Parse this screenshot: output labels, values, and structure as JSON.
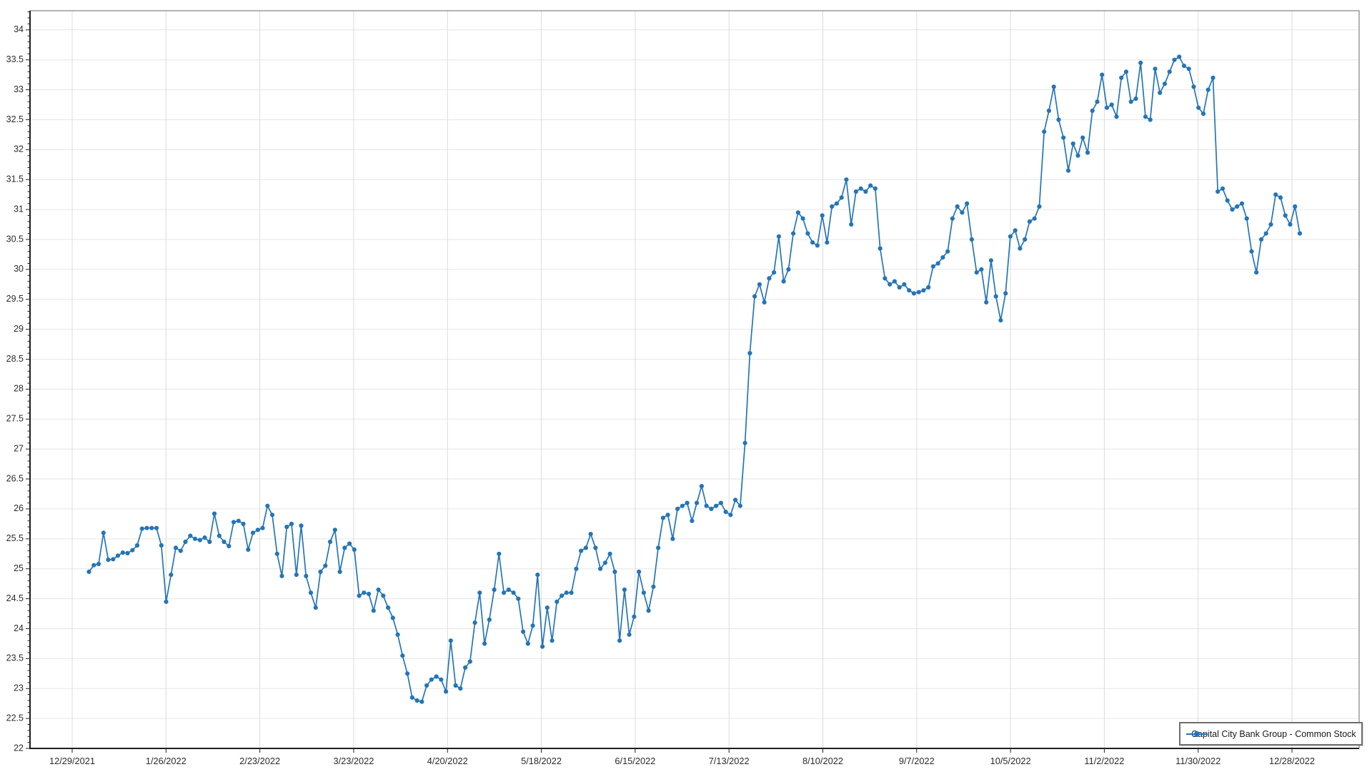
{
  "chart_data": {
    "type": "line",
    "title": "",
    "xlabel": "",
    "ylabel": "",
    "grid": true,
    "legend_position": "bottom-right",
    "x_tick_labels": [
      "12/29/2021",
      "1/26/2022",
      "2/23/2022",
      "3/23/2022",
      "4/20/2022",
      "5/18/2022",
      "6/15/2022",
      "7/13/2022",
      "8/10/2022",
      "9/7/2022",
      "10/5/2022",
      "11/2/2022",
      "11/30/2022",
      "12/28/2022"
    ],
    "y_axis": {
      "min": 22,
      "max": 34.32,
      "major_step": 0.5,
      "minor_step": 0.1,
      "top_label": 34,
      "bottom_label": 22
    },
    "series": [
      {
        "name": "Capital City Bank Group - Common Stock",
        "marker": "circle",
        "values": [
          24.95,
          25.06,
          25.08,
          25.6,
          25.15,
          25.16,
          25.22,
          25.27,
          25.26,
          25.31,
          25.39,
          25.67,
          25.68,
          25.68,
          25.68,
          25.39,
          24.45,
          24.9,
          25.35,
          25.3,
          25.45,
          25.55,
          25.5,
          25.48,
          25.52,
          25.45,
          25.92,
          25.55,
          25.45,
          25.38,
          25.78,
          25.8,
          25.75,
          25.32,
          25.6,
          25.65,
          25.68,
          26.05,
          25.9,
          25.25,
          24.88,
          25.7,
          25.75,
          24.9,
          25.72,
          24.88,
          24.6,
          24.35,
          24.95,
          25.05,
          25.45,
          25.65,
          24.95,
          25.35,
          25.42,
          25.32,
          24.55,
          24.6,
          24.58,
          24.3,
          24.65,
          24.55,
          24.35,
          24.18,
          23.9,
          23.55,
          23.25,
          22.85,
          22.8,
          22.78,
          23.05,
          23.15,
          23.2,
          23.15,
          22.95,
          23.8,
          23.05,
          23.0,
          23.35,
          23.45,
          24.1,
          24.6,
          23.75,
          24.15,
          24.65,
          25.25,
          24.6,
          24.65,
          24.6,
          24.5,
          23.95,
          23.75,
          24.05,
          24.9,
          23.7,
          24.35,
          23.8,
          24.45,
          24.55,
          24.6,
          24.6,
          25.0,
          25.3,
          25.35,
          25.58,
          25.35,
          25.0,
          25.1,
          25.25,
          24.95,
          23.8,
          24.65,
          23.9,
          24.2,
          24.95,
          24.6,
          24.3,
          24.7,
          25.35,
          25.85,
          25.9,
          25.5,
          26.0,
          26.05,
          26.1,
          25.8,
          26.1,
          26.38,
          26.05,
          26.0,
          26.05,
          26.1,
          25.95,
          25.9,
          26.15,
          26.05,
          27.1,
          28.6,
          29.55,
          29.75,
          29.45,
          29.85,
          29.95,
          30.55,
          29.8,
          30.0,
          30.6,
          30.95,
          30.85,
          30.6,
          30.45,
          30.4,
          30.9,
          30.45,
          31.05,
          31.1,
          31.2,
          31.5,
          30.75,
          31.3,
          31.35,
          31.3,
          31.4,
          31.35,
          30.35,
          29.85,
          29.75,
          29.8,
          29.7,
          29.75,
          29.65,
          29.6,
          29.62,
          29.65,
          29.7,
          30.05,
          30.1,
          30.2,
          30.3,
          30.85,
          31.05,
          30.95,
          31.1,
          30.5,
          29.95,
          30.0,
          29.45,
          30.15,
          29.55,
          29.15,
          29.6,
          30.55,
          30.65,
          30.35,
          30.5,
          30.8,
          30.85,
          31.05,
          32.3,
          32.65,
          33.05,
          32.5,
          32.2,
          31.65,
          32.1,
          31.9,
          32.2,
          31.95,
          32.65,
          32.8,
          33.25,
          32.7,
          32.75,
          32.55,
          33.2,
          33.3,
          32.8,
          32.85,
          33.45,
          32.55,
          32.5,
          33.35,
          32.95,
          33.1,
          33.3,
          33.5,
          33.55,
          33.4,
          33.35,
          33.05,
          32.7,
          32.6,
          33.0,
          33.2,
          31.3,
          31.35,
          31.15,
          31.0,
          31.05,
          31.1,
          30.85,
          30.3,
          29.95,
          30.5,
          30.6,
          30.75,
          31.25,
          31.2,
          30.9,
          30.75,
          31.05,
          30.6
        ]
      }
    ]
  },
  "legend": {
    "label": "Capital City Bank Group - Common Stock"
  },
  "colors": {
    "series": "#2475b7",
    "grid_h": "#e6e6e6",
    "grid_v": "#dcdcdc",
    "plot_border": "#6a6a6a",
    "axis": "#1f1f1f",
    "tick_label": "#2b2b2b",
    "background": "#ffffff"
  }
}
